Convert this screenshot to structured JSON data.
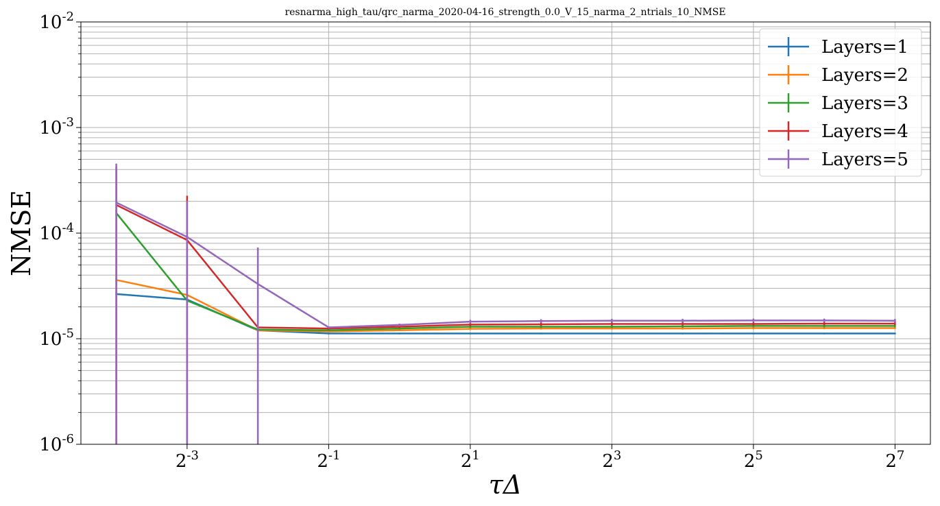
{
  "chart_data": {
    "type": "line",
    "title": "resnarma_high_tau/qrc_narma_2020-04-16_strength_0.0_V_15_narma_2_ntrials_10_NMSE",
    "xlabel": "τΔ",
    "ylabel": "NMSE",
    "x_scale": "log2",
    "y_scale": "log10",
    "xlim": [
      0.0442,
      181
    ],
    "ylim": [
      1e-06,
      0.01
    ],
    "grid": true,
    "legend_position": "top-right",
    "x": [
      0.0625,
      0.125,
      0.25,
      0.5,
      1,
      2,
      4,
      8,
      16,
      32,
      64,
      128
    ],
    "x_ticks": [
      {
        "value": 0.125,
        "base": "2",
        "exp": "-3"
      },
      {
        "value": 0.5,
        "base": "2",
        "exp": "-1"
      },
      {
        "value": 2,
        "base": "2",
        "exp": "1"
      },
      {
        "value": 8,
        "base": "2",
        "exp": "3"
      },
      {
        "value": 32,
        "base": "2",
        "exp": "5"
      },
      {
        "value": 128,
        "base": "2",
        "exp": "7"
      }
    ],
    "y_ticks": [
      {
        "value": 1e-06,
        "base": "10",
        "exp": "-6"
      },
      {
        "value": 1e-05,
        "base": "10",
        "exp": "-5"
      },
      {
        "value": 0.0001,
        "base": "10",
        "exp": "-4"
      },
      {
        "value": 0.001,
        "base": "10",
        "exp": "-3"
      },
      {
        "value": 0.01,
        "base": "10",
        "exp": "-2"
      }
    ],
    "series": [
      {
        "name": "Layers=1",
        "color": "#1f77b4",
        "values": [
          2.65e-05,
          2.35e-05,
          1.2e-05,
          1.12e-05,
          1.12e-05,
          1.12e-05,
          1.12e-05,
          1.12e-05,
          1.12e-05,
          1.12e-05,
          1.12e-05,
          1.12e-05
        ],
        "errors": [
          1e-06,
          1e-06,
          3e-07,
          2e-07,
          2e-07,
          2e-07,
          2e-07,
          2e-07,
          2e-07,
          2e-07,
          2e-07,
          2e-07
        ]
      },
      {
        "name": "Layers=2",
        "color": "#ff7f0e",
        "values": [
          3.6e-05,
          2.6e-05,
          1.2e-05,
          1.17e-05,
          1.2e-05,
          1.24e-05,
          1.25e-05,
          1.25e-05,
          1.25e-05,
          1.26e-05,
          1.26e-05,
          1.26e-05
        ],
        "errors": [
          2e-06,
          1e-06,
          3e-07,
          2e-07,
          2e-07,
          3e-07,
          3e-07,
          3e-07,
          3e-07,
          3e-07,
          3e-07,
          3e-07
        ]
      },
      {
        "name": "Layers=3",
        "color": "#2ca02c",
        "values": [
          0.000155,
          2.3e-05,
          1.22e-05,
          1.2e-05,
          1.25e-05,
          1.3e-05,
          1.3e-05,
          1.3e-05,
          1.31e-05,
          1.32e-05,
          1.32e-05,
          1.32e-05
        ],
        "errors": [
          1e-05,
          1e-06,
          3e-07,
          2e-07,
          3e-07,
          4e-07,
          4e-07,
          4e-07,
          4e-07,
          4e-07,
          4e-07,
          4e-07
        ]
      },
      {
        "name": "Layers=4",
        "color": "#d62728",
        "values": [
          0.000185,
          8.6e-05,
          1.28e-05,
          1.25e-05,
          1.3e-05,
          1.36e-05,
          1.37e-05,
          1.38e-05,
          1.38e-05,
          1.38e-05,
          1.39e-05,
          1.39e-05
        ],
        "errors": [
          0.00024,
          0.00014,
          4e-07,
          3e-07,
          4e-07,
          5e-07,
          5e-07,
          5e-07,
          5e-07,
          5e-07,
          5e-07,
          5e-07
        ]
      },
      {
        "name": "Layers=5",
        "color": "#9467bd",
        "values": [
          0.000195,
          9.2e-05,
          3.3e-05,
          1.28e-05,
          1.35e-05,
          1.45e-05,
          1.47e-05,
          1.48e-05,
          1.48e-05,
          1.49e-05,
          1.49e-05,
          1.48e-05
        ],
        "errors": [
          0.00026,
          0.00011,
          4e-05,
          3e-07,
          4e-07,
          6e-07,
          6e-07,
          6e-07,
          6e-07,
          6e-07,
          6e-07,
          6e-07
        ]
      }
    ]
  }
}
